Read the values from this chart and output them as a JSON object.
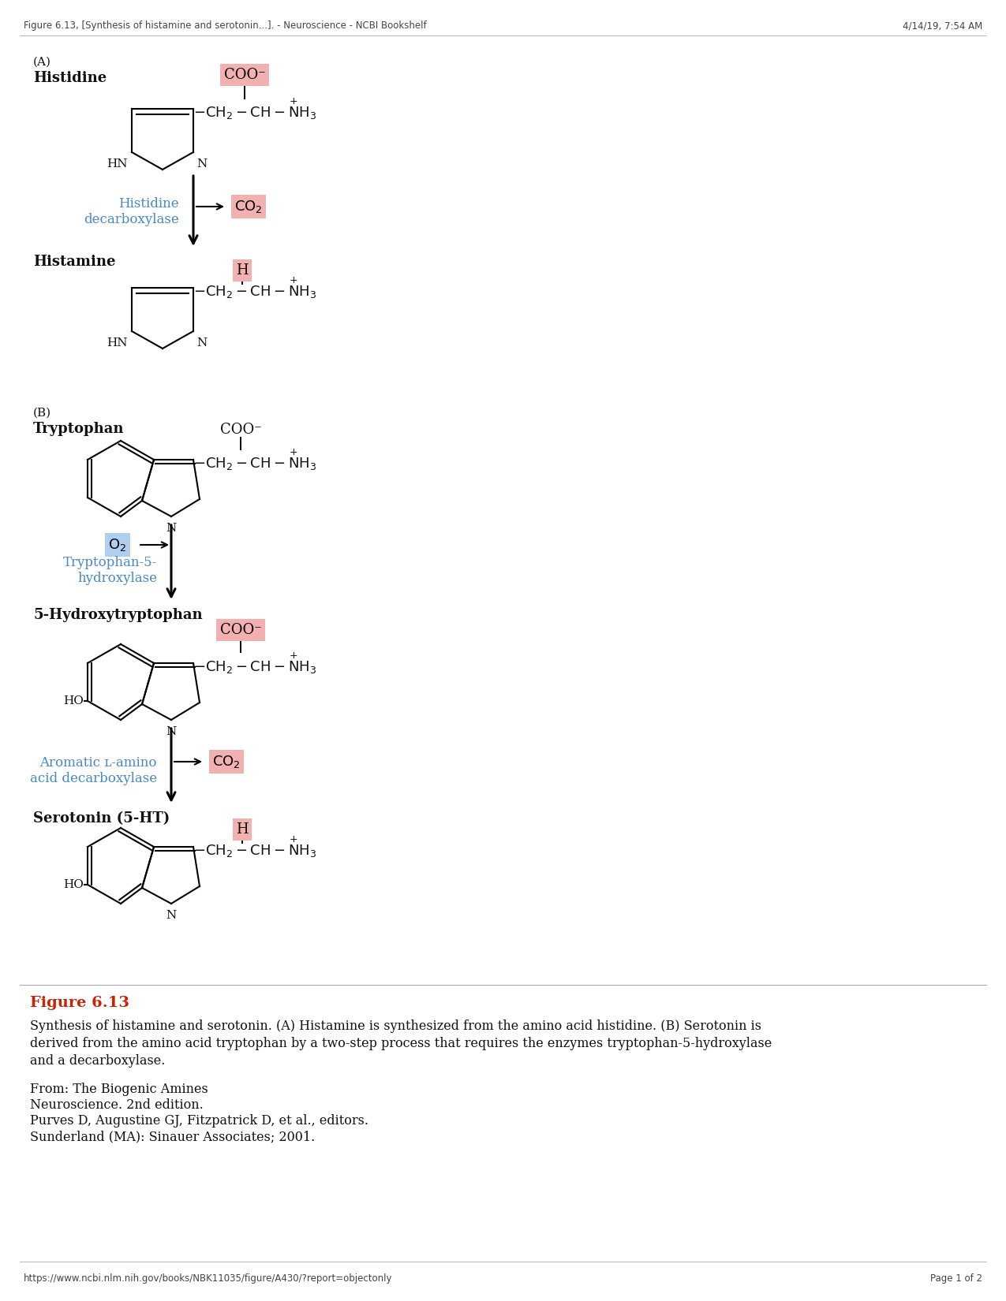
{
  "header_left": "Figure 6.13, [Synthesis of histamine and serotonin...]. - Neuroscience - NCBI Bookshelf",
  "header_right": "4/14/19, 7:54 AM",
  "footer_left": "https://www.ncbi.nlm.nih.gov/books/NBK11035/figure/A430/?report=objectonly",
  "footer_right": "Page 1 of 2",
  "figure_label": "Figure 6.13",
  "from_text": "From: The Biogenic Amines",
  "ref_line1": "Neuroscience. 2nd edition.",
  "ref_line2": "Purves D, Augustine GJ, Fitzpatrick D, et al., editors.",
  "ref_line3": "Sunderland (MA): Sinauer Associates; 2001.",
  "bg_color": "#ffffff",
  "pink_bg": "#f2b0b0",
  "blue_bg": "#b0cef0",
  "blue_text": "#4488cc",
  "black_text": "#111111",
  "red_label": "#cc2200",
  "gray_line": "#aaaaaa"
}
